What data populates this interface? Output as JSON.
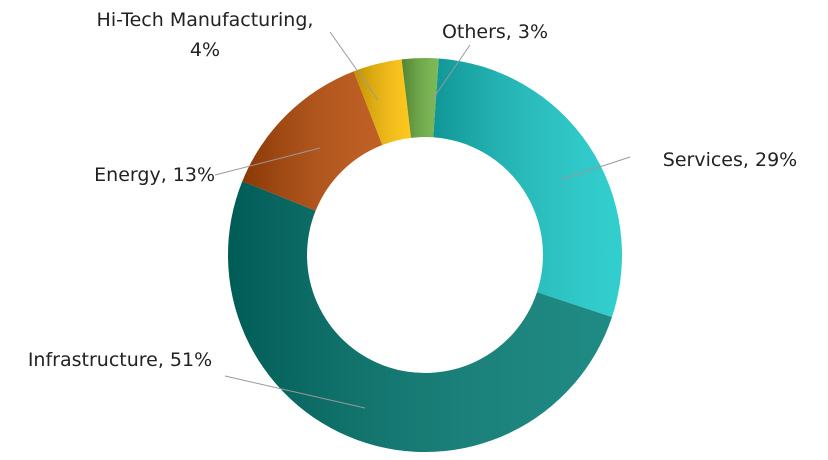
{
  "chart_data": {
    "type": "donut",
    "values": [
      29,
      51,
      13,
      4,
      3
    ],
    "value_labels": [
      "Services, 29%",
      "Infrastructure, 51%",
      "Energy, 13%",
      "Hi-Tech Manufacturing, 4%",
      "Others, 3%"
    ],
    "colors": [
      "#16c8c8",
      "#007a72",
      "#b84a06",
      "#ffc000",
      "#6cb040"
    ]
  }
}
